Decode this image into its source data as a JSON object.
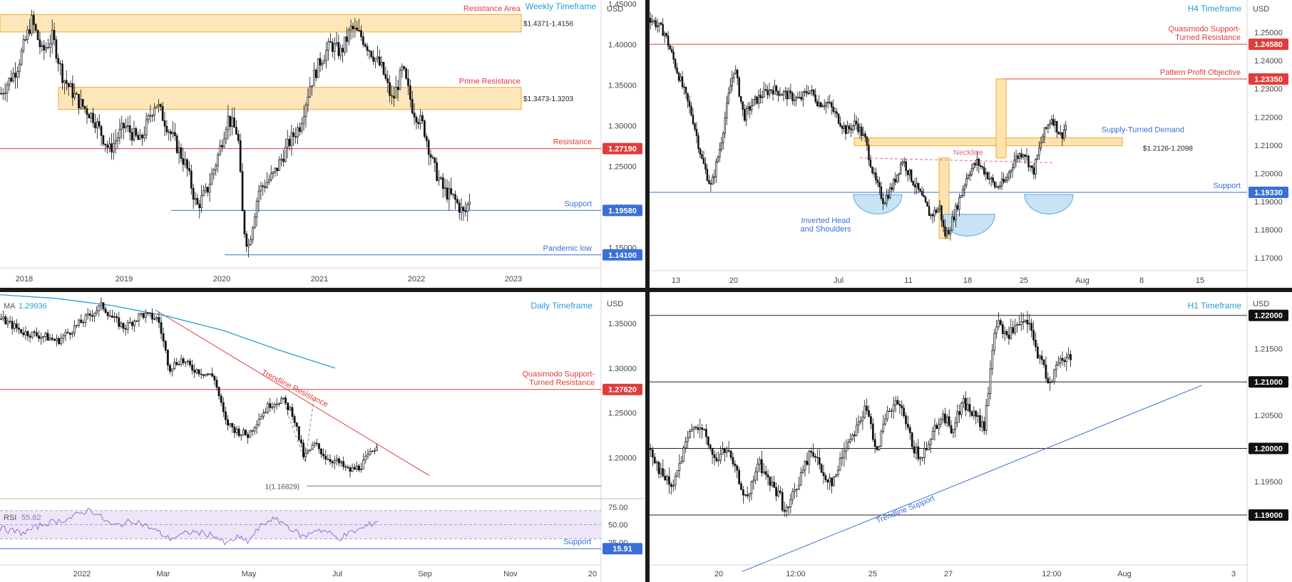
{
  "colors": {
    "candle": "#111111",
    "red_level": "#e03c3c",
    "blue_level": "#3a6fd8",
    "zone_fill": "#fde3ae",
    "zone_border": "#f0a832",
    "ma_line": "#2a9bd6",
    "rsi_line": "#9670cf",
    "rsi_band": "#ece6f8",
    "title_blue": "#2a9bd6",
    "neckline": "#e06a8a",
    "hs_fill": "#b9dcf2"
  },
  "chart_data": [
    {
      "id": "weekly",
      "type": "candlestick",
      "title": "Weekly Timeframe",
      "currency": "USD",
      "x_ticks": [
        "2018",
        "2019",
        "2020",
        "2021",
        "2022",
        "2023"
      ],
      "y_ticks": [
        "1.45000",
        "1.40000",
        "1.35000",
        "1.30000",
        "1.25000",
        "1.20000",
        "1.15000"
      ],
      "ylim": [
        1.125,
        1.455
      ],
      "zones": [
        {
          "label": "Resistance Area",
          "range_label": "$1.4371-1.4156",
          "top": 1.4371,
          "bottom": 1.4156
        },
        {
          "label": "Prime Resistance",
          "range_label": "$1.3473-1.3203",
          "top": 1.3473,
          "bottom": 1.3203
        }
      ],
      "levels": [
        {
          "label": "Resistance",
          "badge": "1.27190",
          "value": 1.2719,
          "color": "red"
        },
        {
          "label": "Support",
          "badge": "1.19580",
          "value": 1.1958,
          "color": "blue"
        },
        {
          "label": "Pandemic low",
          "badge": "1.14100",
          "value": 1.141,
          "color": "blue"
        }
      ],
      "path": [
        [
          0,
          1.34
        ],
        [
          3,
          1.37
        ],
        [
          6,
          1.43
        ],
        [
          8,
          1.39
        ],
        [
          10,
          1.41
        ],
        [
          12,
          1.36
        ],
        [
          15,
          1.33
        ],
        [
          18,
          1.31
        ],
        [
          21,
          1.27
        ],
        [
          24,
          1.3
        ],
        [
          27,
          1.28
        ],
        [
          30,
          1.33
        ],
        [
          33,
          1.29
        ],
        [
          36,
          1.25
        ],
        [
          38,
          1.2
        ],
        [
          40,
          1.22
        ],
        [
          42,
          1.26
        ],
        [
          44,
          1.31
        ],
        [
          46,
          1.29
        ],
        [
          47,
          1.18
        ],
        [
          48,
          1.15
        ],
        [
          50,
          1.22
        ],
        [
          53,
          1.24
        ],
        [
          56,
          1.28
        ],
        [
          58,
          1.3
        ],
        [
          60,
          1.35
        ],
        [
          62,
          1.38
        ],
        [
          64,
          1.4
        ],
        [
          66,
          1.39
        ],
        [
          68,
          1.42
        ],
        [
          70,
          1.41
        ],
        [
          72,
          1.39
        ],
        [
          74,
          1.37
        ],
        [
          76,
          1.33
        ],
        [
          78,
          1.37
        ],
        [
          80,
          1.32
        ],
        [
          82,
          1.3
        ],
        [
          84,
          1.25
        ],
        [
          86,
          1.22
        ],
        [
          88,
          1.21
        ],
        [
          90,
          1.19
        ],
        [
          91,
          1.21
        ]
      ]
    },
    {
      "id": "h4",
      "type": "candlestick",
      "title": "H4 Timeframe",
      "currency": "USD",
      "x_ticks": [
        "13",
        "20",
        "Jul",
        "11",
        "18",
        "25",
        "Aug",
        "8",
        "15"
      ],
      "y_ticks": [
        "1.25000",
        "1.24000",
        "1.23000",
        "1.22000",
        "1.21000",
        "1.20000",
        "1.19000",
        "1.18000",
        "1.17000"
      ],
      "ylim": [
        1.1655,
        1.2615
      ],
      "zones": [
        {
          "label": "Supply-Turned Demand",
          "range_label": "$1.2126-1.2098",
          "top": 1.2126,
          "bottom": 1.2098
        }
      ],
      "levels": [
        {
          "label": "Quasimodo Support-\nTurned Resistance",
          "badge": "1.24580",
          "value": 1.2458,
          "color": "red"
        },
        {
          "label": "Pattern Profit Objective",
          "badge": "1.23350",
          "value": 1.2335,
          "color": "red"
        },
        {
          "label": "Support",
          "badge": "1.19330",
          "value": 1.1933,
          "color": "blue"
        }
      ],
      "annotations": {
        "neckline": "Neckline",
        "pattern": "Inverted Head\nand Shoulders"
      },
      "path": [
        [
          0,
          1.255
        ],
        [
          3,
          1.25
        ],
        [
          6,
          1.235
        ],
        [
          9,
          1.22
        ],
        [
          11,
          1.205
        ],
        [
          13,
          1.195
        ],
        [
          15,
          1.21
        ],
        [
          17,
          1.23
        ],
        [
          18,
          1.238
        ],
        [
          20,
          1.22
        ],
        [
          22,
          1.225
        ],
        [
          24,
          1.228
        ],
        [
          26,
          1.23
        ],
        [
          29,
          1.228
        ],
        [
          32,
          1.226
        ],
        [
          34,
          1.23
        ],
        [
          36,
          1.225
        ],
        [
          38,
          1.225
        ],
        [
          40,
          1.22
        ],
        [
          42,
          1.215
        ],
        [
          44,
          1.218
        ],
        [
          46,
          1.212
        ],
        [
          48,
          1.198
        ],
        [
          50,
          1.19
        ],
        [
          52,
          1.196
        ],
        [
          54,
          1.205
        ],
        [
          56,
          1.198
        ],
        [
          58,
          1.192
        ],
        [
          60,
          1.185
        ],
        [
          62,
          1.188
        ],
        [
          63,
          1.178
        ],
        [
          64,
          1.18
        ],
        [
          66,
          1.19
        ],
        [
          68,
          1.2
        ],
        [
          70,
          1.204
        ],
        [
          72,
          1.2
        ],
        [
          74,
          1.195
        ],
        [
          76,
          1.197
        ],
        [
          78,
          1.205
        ],
        [
          80,
          1.208
        ],
        [
          82,
          1.2
        ],
        [
          84,
          1.213
        ],
        [
          86,
          1.22
        ],
        [
          88,
          1.213
        ],
        [
          89,
          1.217
        ]
      ]
    },
    {
      "id": "daily",
      "type": "candlestick",
      "title": "Daily Timeframe",
      "currency": "USD",
      "x_ticks": [
        "2022",
        "Mar",
        "May",
        "Jul",
        "Sep",
        "Nov",
        "20"
      ],
      "y_ticks": [
        "1.35000",
        "1.30000",
        "1.25000",
        "1.20000"
      ],
      "ylim": [
        1.155,
        1.385
      ],
      "ma_label": "MA",
      "ma_value": "1.29936",
      "levels": [
        {
          "label": "Quasimodo Support-\nTurned Resistance",
          "badge": "1.27620",
          "value": 1.2762,
          "color": "red"
        }
      ],
      "fib_label": "1(1.16829)",
      "fib_value": 1.16829,
      "trendline_label": "Trendline Resistance",
      "path": [
        [
          0,
          1.355
        ],
        [
          4,
          1.34
        ],
        [
          8,
          1.335
        ],
        [
          10,
          1.33
        ],
        [
          13,
          1.345
        ],
        [
          16,
          1.36
        ],
        [
          18,
          1.37
        ],
        [
          20,
          1.355
        ],
        [
          22,
          1.345
        ],
        [
          25,
          1.36
        ],
        [
          28,
          1.355
        ],
        [
          30,
          1.3
        ],
        [
          32,
          1.31
        ],
        [
          34,
          1.3
        ],
        [
          36,
          1.295
        ],
        [
          38,
          1.29
        ],
        [
          40,
          1.24
        ],
        [
          42,
          1.23
        ],
        [
          44,
          1.225
        ],
        [
          46,
          1.245
        ],
        [
          48,
          1.26
        ],
        [
          50,
          1.265
        ],
        [
          52,
          1.25
        ],
        [
          54,
          1.2
        ],
        [
          56,
          1.215
        ],
        [
          58,
          1.2
        ],
        [
          60,
          1.195
        ],
        [
          62,
          1.185
        ],
        [
          64,
          1.19
        ],
        [
          66,
          1.205
        ],
        [
          67,
          1.215
        ]
      ],
      "ma_path": [
        [
          0,
          1.382
        ],
        [
          10,
          1.378
        ],
        [
          20,
          1.37
        ],
        [
          30,
          1.358
        ],
        [
          40,
          1.342
        ],
        [
          50,
          1.32
        ],
        [
          60,
          1.3
        ]
      ]
    },
    {
      "id": "rsi",
      "type": "line",
      "label": "RSI",
      "value": "55.82",
      "y_ticks": [
        "75.00",
        "50.00",
        "25.00"
      ],
      "ylim": [
        5,
        85
      ],
      "support_label": "Support",
      "support_badge": "15.91",
      "support_value": 15.91,
      "path": [
        [
          0,
          45
        ],
        [
          4,
          38
        ],
        [
          8,
          52
        ],
        [
          12,
          58
        ],
        [
          16,
          72
        ],
        [
          18,
          60
        ],
        [
          20,
          48
        ],
        [
          24,
          56
        ],
        [
          28,
          40
        ],
        [
          30,
          30
        ],
        [
          34,
          40
        ],
        [
          38,
          35
        ],
        [
          40,
          22
        ],
        [
          42,
          32
        ],
        [
          44,
          26
        ],
        [
          46,
          46
        ],
        [
          48,
          58
        ],
        [
          50,
          54
        ],
        [
          52,
          42
        ],
        [
          54,
          32
        ],
        [
          56,
          44
        ],
        [
          58,
          40
        ],
        [
          60,
          30
        ],
        [
          62,
          38
        ],
        [
          64,
          44
        ],
        [
          66,
          52
        ],
        [
          67,
          56
        ]
      ]
    },
    {
      "id": "h1",
      "type": "candlestick",
      "title": "H1 Timeframe",
      "currency": "USD",
      "x_ticks": [
        "20",
        "12:00",
        "25",
        "27",
        "12:00",
        "Aug",
        "3"
      ],
      "y_ticks": [
        "1.21500",
        "1.20500",
        "1.19500"
      ],
      "ylim": [
        1.1825,
        1.2235
      ],
      "levels": [
        {
          "badge": "1.22000",
          "value": 1.22
        },
        {
          "badge": "1.21000",
          "value": 1.21
        },
        {
          "badge": "1.20000",
          "value": 1.2
        },
        {
          "badge": "1.19000",
          "value": 1.19
        }
      ],
      "trendline_label": "Trendline Support",
      "path": [
        [
          0,
          1.2
        ],
        [
          2,
          1.196
        ],
        [
          4,
          1.194
        ],
        [
          6,
          1.199
        ],
        [
          8,
          1.204
        ],
        [
          10,
          1.202
        ],
        [
          12,
          1.198
        ],
        [
          14,
          1.2
        ],
        [
          16,
          1.196
        ],
        [
          18,
          1.192
        ],
        [
          20,
          1.198
        ],
        [
          22,
          1.195
        ],
        [
          24,
          1.193
        ],
        [
          25,
          1.19
        ],
        [
          27,
          1.194
        ],
        [
          30,
          1.2
        ],
        [
          32,
          1.196
        ],
        [
          34,
          1.195
        ],
        [
          36,
          1.2
        ],
        [
          38,
          1.203
        ],
        [
          40,
          1.206
        ],
        [
          42,
          1.2
        ],
        [
          44,
          1.205
        ],
        [
          46,
          1.207
        ],
        [
          48,
          1.202
        ],
        [
          50,
          1.198
        ],
        [
          52,
          1.202
        ],
        [
          54,
          1.205
        ],
        [
          56,
          1.203
        ],
        [
          58,
          1.207
        ],
        [
          60,
          1.205
        ],
        [
          62,
          1.203
        ],
        [
          64,
          1.219
        ],
        [
          66,
          1.217
        ],
        [
          68,
          1.218
        ],
        [
          70,
          1.219
        ],
        [
          72,
          1.214
        ],
        [
          74,
          1.21
        ],
        [
          76,
          1.213
        ],
        [
          78,
          1.214
        ]
      ]
    }
  ]
}
